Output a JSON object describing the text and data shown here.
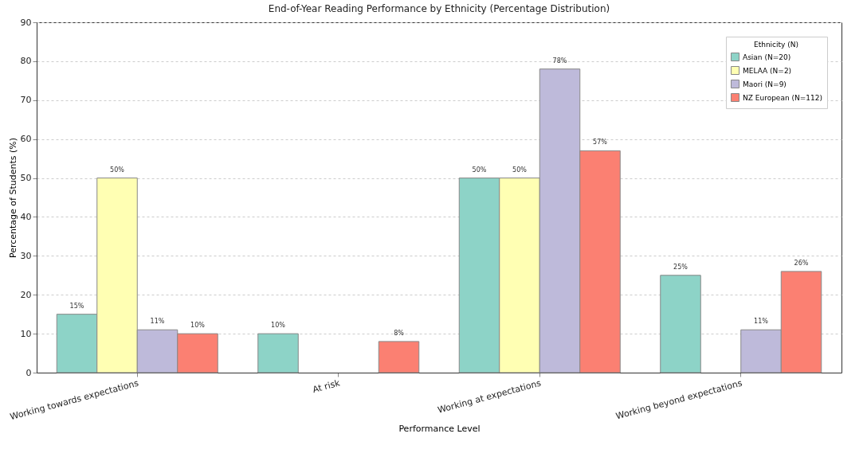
{
  "chart_data": {
    "type": "bar",
    "title": "End-of-Year Reading Performance by Ethnicity (Percentage Distribution)",
    "xlabel": "Performance Level",
    "ylabel": "Percentage of Students (%)",
    "legend_title": "Ethnicity (N)",
    "categories": [
      "Working towards expectations",
      "At risk",
      "Working at expectations",
      "Working beyond expectations"
    ],
    "series": [
      {
        "name": "Asian (N=20)",
        "color": "#8dd3c7",
        "values": [
          15,
          10,
          50,
          25
        ],
        "value_labels": [
          "15%",
          "10%",
          "50%",
          "25%"
        ]
      },
      {
        "name": "MELAA (N=2)",
        "color": "#ffffb3",
        "values": [
          50,
          null,
          50,
          null
        ],
        "value_labels": [
          "50%",
          null,
          "50%",
          null
        ]
      },
      {
        "name": "Maori (N=9)",
        "color": "#bebada",
        "values": [
          11,
          null,
          78,
          11
        ],
        "value_labels": [
          "11%",
          null,
          "78%",
          "11%"
        ]
      },
      {
        "name": "NZ European (N=112)",
        "color": "#fb8072",
        "values": [
          10,
          8,
          57,
          26
        ],
        "value_labels": [
          "10%",
          "8%",
          "57%",
          "26%"
        ]
      }
    ],
    "ylim": [
      0,
      90
    ],
    "yticks": [
      0,
      10,
      20,
      30,
      40,
      50,
      60,
      70,
      80,
      90
    ],
    "grid": "y",
    "legend": "top right"
  }
}
